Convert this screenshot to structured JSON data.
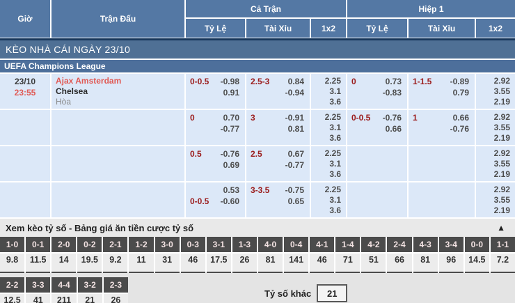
{
  "table": {
    "headers": {
      "time": "Giờ",
      "match": "Trận Đấu",
      "full_match": "Cả Trận",
      "first_half": "Hiệp 1",
      "sub": [
        "Tỷ Lệ",
        "Tài Xỉu",
        "1x2",
        "Tỷ Lệ",
        "Tài Xỉu",
        "1x2"
      ]
    },
    "section_title": "KÈO NHÀ CÁI NGÀY 23/10",
    "league": "UEFA Champions League",
    "rows": [
      {
        "date": "23/10",
        "time": "23:55",
        "home": "Ajax Amsterdam",
        "away": "Chelsea",
        "draw": "Hòa",
        "ft_hdp": [
          [
            "0-0.5",
            "-0.98"
          ],
          [
            "",
            "0.91"
          ]
        ],
        "ft_ou": [
          [
            "2.5-3",
            "0.84"
          ],
          [
            "",
            "-0.94"
          ]
        ],
        "ft_1x2": [
          "2.25",
          "3.1",
          "3.6"
        ],
        "fh_hdp": [
          [
            "0",
            "0.73"
          ],
          [
            "",
            "-0.83"
          ]
        ],
        "fh_ou": [
          [
            "1-1.5",
            "-0.89"
          ],
          [
            "",
            "0.79"
          ]
        ],
        "fh_1x2": [
          "2.92",
          "3.55",
          "2.19"
        ]
      },
      {
        "date": "",
        "time": "",
        "home": "",
        "away": "",
        "draw": "",
        "ft_hdp": [
          [
            "0",
            "0.70"
          ],
          [
            "",
            "-0.77"
          ]
        ],
        "ft_ou": [
          [
            "3",
            "-0.91"
          ],
          [
            "",
            "0.81"
          ]
        ],
        "ft_1x2": [
          "2.25",
          "3.1",
          "3.6"
        ],
        "fh_hdp": [
          [
            "0-0.5",
            "-0.76"
          ],
          [
            "",
            "0.66"
          ]
        ],
        "fh_ou": [
          [
            "1",
            "0.66"
          ],
          [
            "",
            "-0.76"
          ]
        ],
        "fh_1x2": [
          "2.92",
          "3.55",
          "2.19"
        ]
      },
      {
        "date": "",
        "time": "",
        "home": "",
        "away": "",
        "draw": "",
        "ft_hdp": [
          [
            "0.5",
            "-0.76"
          ],
          [
            "",
            "0.69"
          ]
        ],
        "ft_ou": [
          [
            "2.5",
            "0.67"
          ],
          [
            "",
            "-0.77"
          ]
        ],
        "ft_1x2": [
          "2.25",
          "3.1",
          "3.6"
        ],
        "fh_hdp": [
          [
            "",
            ""
          ],
          [
            "",
            ""
          ]
        ],
        "fh_ou": [
          [
            "",
            ""
          ],
          [
            "",
            ""
          ]
        ],
        "fh_1x2": [
          "2.92",
          "3.55",
          "2.19"
        ]
      },
      {
        "date": "",
        "time": "",
        "home": "",
        "away": "",
        "draw": "",
        "ft_hdp": [
          [
            "",
            "0.53"
          ],
          [
            "0-0.5",
            "-0.60"
          ]
        ],
        "ft_ou": [
          [
            "3-3.5",
            "-0.75"
          ],
          [
            "",
            "0.65"
          ]
        ],
        "ft_1x2": [
          "2.25",
          "3.1",
          "3.6"
        ],
        "fh_hdp": [
          [
            "",
            ""
          ],
          [
            "",
            ""
          ]
        ],
        "fh_ou": [
          [
            "",
            ""
          ],
          [
            "",
            ""
          ]
        ],
        "fh_1x2": [
          "2.92",
          "3.55",
          "2.19"
        ]
      }
    ]
  },
  "score_section": {
    "title": "Xem kèo tỷ số - Bảng giá ăn tiền cược tỷ số",
    "collapse_icon": "▲",
    "row1": [
      {
        "score": "1-0",
        "odds": "9.8"
      },
      {
        "score": "0-1",
        "odds": "11.5"
      },
      {
        "score": "2-0",
        "odds": "14"
      },
      {
        "score": "0-2",
        "odds": "19.5"
      },
      {
        "score": "2-1",
        "odds": "9.2"
      },
      {
        "score": "1-2",
        "odds": "11"
      },
      {
        "score": "3-0",
        "odds": "31"
      },
      {
        "score": "0-3",
        "odds": "46"
      },
      {
        "score": "3-1",
        "odds": "17.5"
      },
      {
        "score": "1-3",
        "odds": "26"
      },
      {
        "score": "4-0",
        "odds": "81"
      },
      {
        "score": "0-4",
        "odds": "141"
      },
      {
        "score": "4-1",
        "odds": "46"
      },
      {
        "score": "1-4",
        "odds": "71"
      },
      {
        "score": "4-2",
        "odds": "51"
      },
      {
        "score": "2-4",
        "odds": "66"
      },
      {
        "score": "4-3",
        "odds": "81"
      },
      {
        "score": "3-4",
        "odds": "96"
      },
      {
        "score": "0-0",
        "odds": "14.5"
      },
      {
        "score": "1-1",
        "odds": "7.2"
      }
    ],
    "row2": [
      {
        "score": "2-2",
        "odds": "12.5"
      },
      {
        "score": "3-3",
        "odds": "41"
      },
      {
        "score": "4-4",
        "odds": "211"
      },
      {
        "score": "3-2",
        "odds": "21"
      },
      {
        "score": "2-3",
        "odds": "26"
      }
    ],
    "other_label": "Tỷ số khác",
    "other_value": "21"
  },
  "colors": {
    "header_blue": "#5478a4",
    "bar_navy": "#17365a",
    "section_bar_blue": "#4f7095",
    "league_bar_blue": "#4d6f9b",
    "row_bg": "#dce8f8",
    "handicap_maroon": "#9b1c1c",
    "odds_text": "#4d4d4d",
    "team_red": "#e05a55",
    "score_label_bg": "#4b4b4b",
    "score_section_bg": "#e4e4e4"
  }
}
